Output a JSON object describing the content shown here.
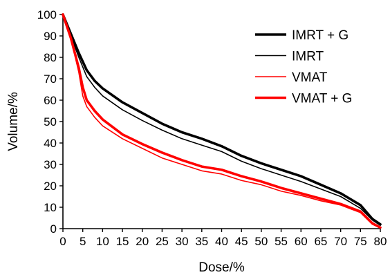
{
  "chart_data": {
    "type": "line",
    "title": "",
    "xlabel": "Dose/%",
    "ylabel": "Volume/%",
    "xlim": [
      0,
      80
    ],
    "ylim": [
      0,
      100
    ],
    "xticks": [
      0,
      5,
      10,
      15,
      20,
      25,
      30,
      35,
      40,
      45,
      50,
      55,
      60,
      65,
      70,
      75,
      80
    ],
    "yticks": [
      0,
      10,
      20,
      30,
      40,
      50,
      60,
      70,
      80,
      90,
      100
    ],
    "grid": false,
    "legend_position": "top-right",
    "series": [
      {
        "name": "IMRT + G",
        "color": "#000000",
        "weight": "thick",
        "x": [
          0,
          2,
          4,
          6,
          8,
          10,
          15,
          20,
          25,
          30,
          35,
          40,
          45,
          50,
          55,
          60,
          65,
          70,
          75,
          78,
          80
        ],
        "y": [
          100,
          91,
          82,
          74,
          69,
          65.5,
          59,
          54,
          49,
          45,
          42,
          38.5,
          34,
          30.5,
          27.5,
          24.5,
          20.5,
          16.5,
          11,
          4.5,
          2
        ]
      },
      {
        "name": "IMRT",
        "color": "#000000",
        "weight": "thin",
        "x": [
          0,
          2,
          4,
          6,
          8,
          10,
          15,
          20,
          25,
          30,
          35,
          40,
          45,
          50,
          55,
          60,
          65,
          70,
          75,
          78,
          80
        ],
        "y": [
          100,
          90,
          80,
          71,
          66,
          62,
          55.5,
          50.5,
          46,
          42,
          39,
          36,
          31.5,
          28,
          25,
          22,
          18.5,
          15,
          9.5,
          4,
          1.5
        ]
      },
      {
        "name": "VMAT",
        "color": "#ff0000",
        "weight": "thin",
        "x": [
          0,
          2,
          4,
          5,
          6,
          8,
          10,
          15,
          20,
          25,
          30,
          35,
          40,
          45,
          50,
          55,
          60,
          65,
          70,
          75,
          78,
          80
        ],
        "y": [
          100,
          89,
          73,
          62,
          57,
          52,
          48,
          42,
          37.5,
          33,
          30,
          27,
          25.5,
          22.5,
          20.5,
          17.5,
          15.5,
          13,
          11,
          7.5,
          2,
          0.5
        ]
      },
      {
        "name": "VMAT + G",
        "color": "#ff0000",
        "weight": "thick",
        "x": [
          0,
          2,
          4,
          5,
          6,
          8,
          10,
          15,
          20,
          25,
          30,
          35,
          40,
          45,
          50,
          55,
          60,
          65,
          70,
          75,
          78,
          80
        ],
        "y": [
          100,
          89,
          75,
          66,
          60,
          55,
          51,
          44,
          39.5,
          35.5,
          32,
          29,
          27.5,
          24.5,
          22,
          19,
          16.5,
          14,
          11.5,
          8,
          2.5,
          0.5
        ]
      }
    ]
  }
}
